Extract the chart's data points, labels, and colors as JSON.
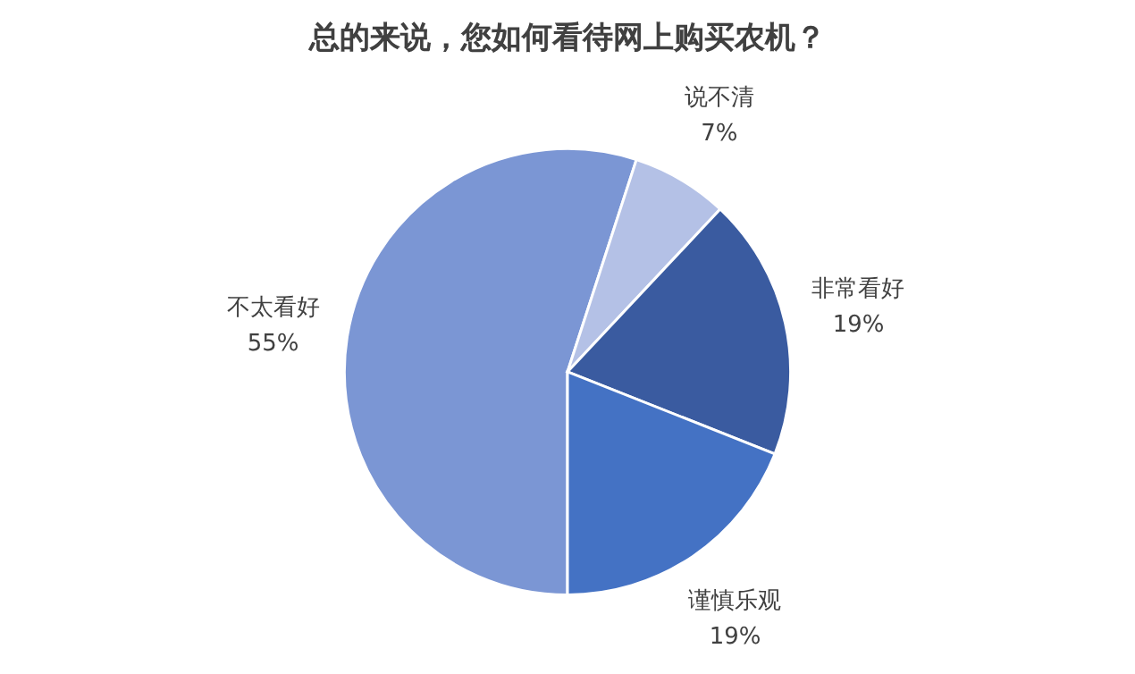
{
  "chart_data": {
    "type": "pie",
    "title": "总的来说，您如何看待网上购买农机？",
    "categories": [
      "不太看好",
      "说不清",
      "非常看好",
      "谨慎乐观"
    ],
    "values": [
      55,
      7,
      19,
      19
    ],
    "colors": [
      "#7b96d4",
      "#b4c1e6",
      "#3a5ba0",
      "#4472c4"
    ],
    "value_labels": [
      "55%",
      "7%",
      "19%",
      "19%"
    ],
    "legend": false
  }
}
